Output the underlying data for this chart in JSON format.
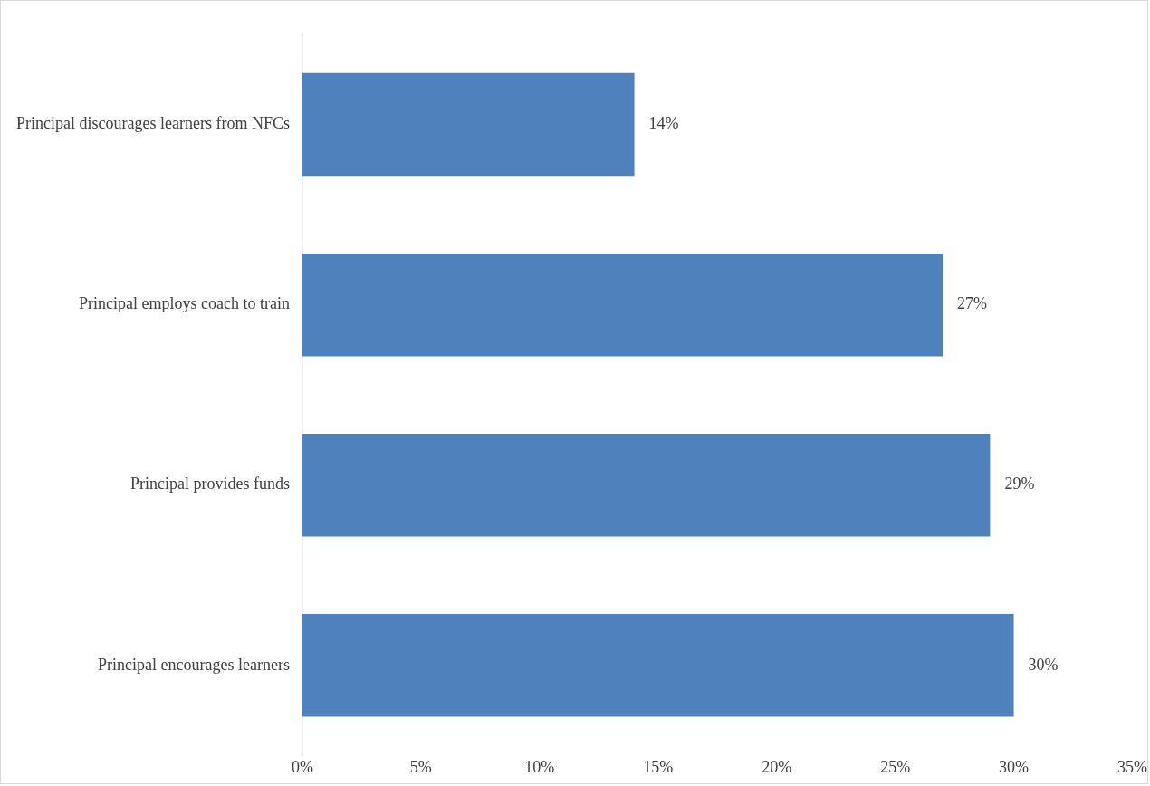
{
  "chart_data": {
    "type": "bar",
    "orientation": "horizontal",
    "categories": [
      "Principal discourages learners from NFCs",
      "Principal employs coach to train",
      "Principal provides funds",
      "Principal encourages learners"
    ],
    "values": [
      14,
      27,
      29,
      30
    ],
    "color": "#4f81bd",
    "value_labels": [
      "14%",
      "27%",
      "29%",
      "30%"
    ],
    "xlim": [
      0,
      35
    ],
    "xticks": [
      {
        "value": 0,
        "label": "0%"
      },
      {
        "value": 5,
        "label": "5%"
      },
      {
        "value": 10,
        "label": "10%"
      },
      {
        "value": 15,
        "label": "15%"
      },
      {
        "value": 20,
        "label": "20%"
      },
      {
        "value": 25,
        "label": "25%"
      },
      {
        "value": 30,
        "label": "30%"
      },
      {
        "value": 35,
        "label": "35%"
      }
    ],
    "grid": false,
    "legend": false
  }
}
